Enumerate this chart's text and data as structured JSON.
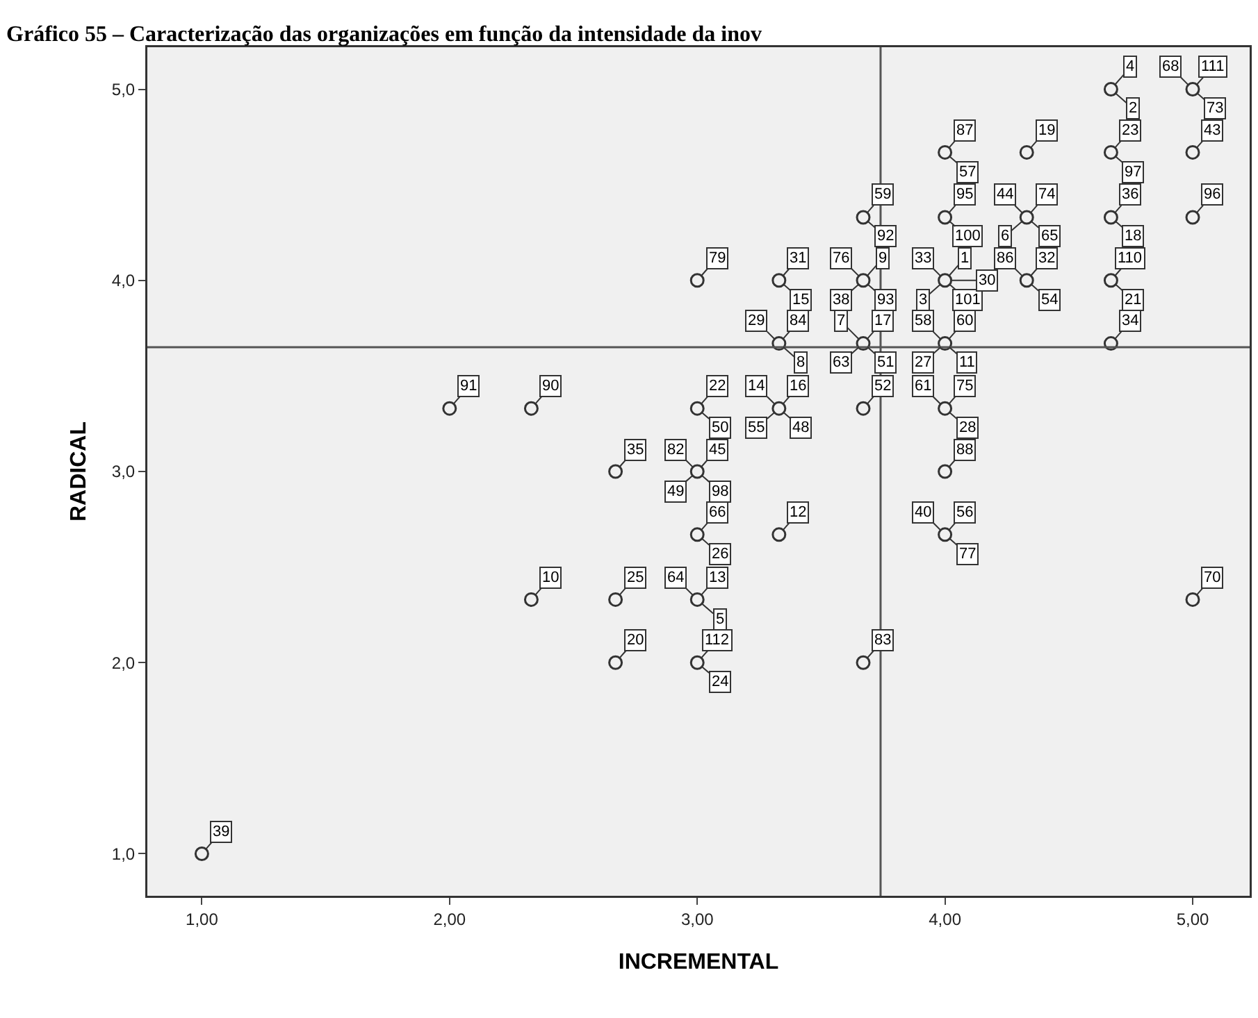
{
  "chart_data": {
    "type": "scatter",
    "title": "Gráfico 55 – Caracterização das organizações em função da intensidade da inov",
    "xlabel": "INCREMENTAL",
    "ylabel": "RADICAL",
    "xlim": [
      0.78,
      5.23
    ],
    "ylim": [
      0.78,
      5.22
    ],
    "xticks": [
      {
        "value": 1,
        "label": "1,00"
      },
      {
        "value": 2,
        "label": "2,00"
      },
      {
        "value": 3,
        "label": "3,00"
      },
      {
        "value": 4,
        "label": "4,00"
      },
      {
        "value": 5,
        "label": "5,00"
      }
    ],
    "yticks": [
      {
        "value": 1,
        "label": "1,0"
      },
      {
        "value": 2,
        "label": "2,0"
      },
      {
        "value": 3,
        "label": "3,0"
      },
      {
        "value": 4,
        "label": "4,0"
      },
      {
        "value": 5,
        "label": "5,0"
      }
    ],
    "marker": "circle",
    "series": [
      {
        "color": "#333333",
        "x": [
          4.67,
          5,
          4,
          4.33,
          4.67,
          5,
          3.67,
          4,
          4.33,
          4.67,
          5,
          3,
          3.33,
          3.67,
          4,
          4.33,
          4.67,
          3.33,
          3.67,
          4,
          4.67,
          3,
          3.33,
          3.67,
          4,
          3,
          2.67,
          4,
          3,
          3.33,
          4,
          2.33,
          2,
          2.33,
          2.67,
          3,
          2.67,
          3,
          3.67,
          5,
          1
        ],
        "values": [
          5,
          5,
          4.67,
          4.67,
          4.67,
          4.67,
          4.33,
          4.33,
          4.33,
          4.33,
          4.33,
          4,
          4,
          4,
          4,
          4,
          4,
          3.67,
          3.67,
          3.67,
          3.67,
          3.33,
          3.33,
          3.33,
          3.33,
          3,
          3,
          3,
          2.67,
          2.67,
          2.67,
          2.33,
          3.33,
          3.33,
          2.33,
          2.33,
          2,
          2,
          2,
          2.33,
          1
        ]
      }
    ],
    "ref_lines": [
      {
        "axis": "x",
        "value": 3.74,
        "color": "#555555"
      },
      {
        "axis": "y",
        "value": 3.65,
        "color": "#555555"
      }
    ],
    "annotations": [
      {
        "text": "4",
        "x": 4.67,
        "y": 5
      },
      {
        "text": "2",
        "x": 4.67,
        "y": 5
      },
      {
        "text": "111",
        "x": 5,
        "y": 5
      },
      {
        "text": "73",
        "x": 5,
        "y": 5
      },
      {
        "text": "68",
        "x": 5,
        "y": 5
      },
      {
        "text": "87",
        "x": 4,
        "y": 4.67
      },
      {
        "text": "57",
        "x": 4,
        "y": 4.67
      },
      {
        "text": "19",
        "x": 4.33,
        "y": 4.67
      },
      {
        "text": "23",
        "x": 4.67,
        "y": 4.67
      },
      {
        "text": "97",
        "x": 4.67,
        "y": 4.67
      },
      {
        "text": "43",
        "x": 5,
        "y": 4.67
      },
      {
        "text": "59",
        "x": 3.67,
        "y": 4.33
      },
      {
        "text": "92",
        "x": 3.67,
        "y": 4.33
      },
      {
        "text": "95",
        "x": 4,
        "y": 4.33
      },
      {
        "text": "100",
        "x": 4,
        "y": 4.33
      },
      {
        "text": "74",
        "x": 4.33,
        "y": 4.33
      },
      {
        "text": "65",
        "x": 4.33,
        "y": 4.33
      },
      {
        "text": "44",
        "x": 4.33,
        "y": 4.33
      },
      {
        "text": "6",
        "x": 4.33,
        "y": 4.33
      },
      {
        "text": "36",
        "x": 4.67,
        "y": 4.33
      },
      {
        "text": "18",
        "x": 4.67,
        "y": 4.33
      },
      {
        "text": "96",
        "x": 5,
        "y": 4.33
      },
      {
        "text": "79",
        "x": 3,
        "y": 4
      },
      {
        "text": "31",
        "x": 3.33,
        "y": 4
      },
      {
        "text": "15",
        "x": 3.33,
        "y": 4
      },
      {
        "text": "9",
        "x": 3.67,
        "y": 4
      },
      {
        "text": "93",
        "x": 3.67,
        "y": 4
      },
      {
        "text": "76",
        "x": 3.67,
        "y": 4
      },
      {
        "text": "38",
        "x": 3.67,
        "y": 4
      },
      {
        "text": "1",
        "x": 4,
        "y": 4
      },
      {
        "text": "101",
        "x": 4,
        "y": 4
      },
      {
        "text": "33",
        "x": 4,
        "y": 4
      },
      {
        "text": "3",
        "x": 4,
        "y": 4
      },
      {
        "text": "30",
        "x": 4,
        "y": 4
      },
      {
        "text": "32",
        "x": 4.33,
        "y": 4
      },
      {
        "text": "54",
        "x": 4.33,
        "y": 4
      },
      {
        "text": "86",
        "x": 4.33,
        "y": 4
      },
      {
        "text": "110",
        "x": 4.67,
        "y": 4
      },
      {
        "text": "21",
        "x": 4.67,
        "y": 4
      },
      {
        "text": "84",
        "x": 3.33,
        "y": 3.67
      },
      {
        "text": "8",
        "x": 3.33,
        "y": 3.67
      },
      {
        "text": "29",
        "x": 3.33,
        "y": 3.67
      },
      {
        "text": "17",
        "x": 3.67,
        "y": 3.67
      },
      {
        "text": "51",
        "x": 3.67,
        "y": 3.67
      },
      {
        "text": "7",
        "x": 3.67,
        "y": 3.67
      },
      {
        "text": "63",
        "x": 3.67,
        "y": 3.67
      },
      {
        "text": "60",
        "x": 4,
        "y": 3.67
      },
      {
        "text": "11",
        "x": 4,
        "y": 3.67
      },
      {
        "text": "58",
        "x": 4,
        "y": 3.67
      },
      {
        "text": "27",
        "x": 4,
        "y": 3.67
      },
      {
        "text": "34",
        "x": 4.67,
        "y": 3.67
      },
      {
        "text": "22",
        "x": 3,
        "y": 3.33
      },
      {
        "text": "50",
        "x": 3,
        "y": 3.33
      },
      {
        "text": "16",
        "x": 3.33,
        "y": 3.33
      },
      {
        "text": "48",
        "x": 3.33,
        "y": 3.33
      },
      {
        "text": "14",
        "x": 3.33,
        "y": 3.33
      },
      {
        "text": "55",
        "x": 3.33,
        "y": 3.33
      },
      {
        "text": "52",
        "x": 3.67,
        "y": 3.33
      },
      {
        "text": "75",
        "x": 4,
        "y": 3.33
      },
      {
        "text": "28",
        "x": 4,
        "y": 3.33
      },
      {
        "text": "61",
        "x": 4,
        "y": 3.33
      },
      {
        "text": "45",
        "x": 3,
        "y": 3
      },
      {
        "text": "98",
        "x": 3,
        "y": 3
      },
      {
        "text": "82",
        "x": 3,
        "y": 3
      },
      {
        "text": "49",
        "x": 3,
        "y": 3
      },
      {
        "text": "35",
        "x": 2.67,
        "y": 3
      },
      {
        "text": "88",
        "x": 4,
        "y": 3
      },
      {
        "text": "66",
        "x": 3,
        "y": 2.67
      },
      {
        "text": "26",
        "x": 3,
        "y": 2.67
      },
      {
        "text": "12",
        "x": 3.33,
        "y": 2.67
      },
      {
        "text": "56",
        "x": 4,
        "y": 2.67
      },
      {
        "text": "77",
        "x": 4,
        "y": 2.67
      },
      {
        "text": "40",
        "x": 4,
        "y": 2.67
      },
      {
        "text": "10",
        "x": 2.33,
        "y": 2.33
      },
      {
        "text": "91",
        "x": 2,
        "y": 3.33
      },
      {
        "text": "90",
        "x": 2.33,
        "y": 3.33
      },
      {
        "text": "25",
        "x": 2.67,
        "y": 2.33
      },
      {
        "text": "13",
        "x": 3,
        "y": 2.33
      },
      {
        "text": "5",
        "x": 3,
        "y": 2.33
      },
      {
        "text": "64",
        "x": 3,
        "y": 2.33
      },
      {
        "text": "20",
        "x": 2.67,
        "y": 2
      },
      {
        "text": "112",
        "x": 3,
        "y": 2
      },
      {
        "text": "24",
        "x": 3,
        "y": 2
      },
      {
        "text": "83",
        "x": 3.67,
        "y": 2
      },
      {
        "text": "70",
        "x": 5,
        "y": 2.33
      },
      {
        "text": "39",
        "x": 1,
        "y": 1
      }
    ]
  }
}
